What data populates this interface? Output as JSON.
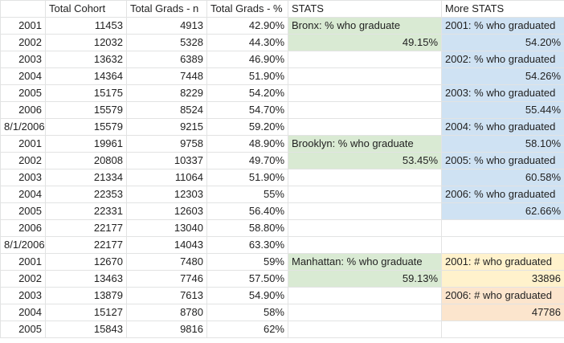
{
  "headers": [
    "",
    "Total Cohort",
    "Total Grads - n",
    "Total Grads - %",
    "STATS",
    "More STATS"
  ],
  "rows": [
    [
      "2001",
      "11453",
      "4913",
      "42.90%",
      "Bronx: % who graduate",
      "2001: % who graduated"
    ],
    [
      "2002",
      "12032",
      "5328",
      "44.30%",
      "49.15%",
      "54.20%"
    ],
    [
      "2003",
      "13632",
      "6389",
      "46.90%",
      "",
      "2002: % who graduated"
    ],
    [
      "2004",
      "14364",
      "7448",
      "51.90%",
      "",
      "54.26%"
    ],
    [
      "2005",
      "15175",
      "8229",
      "54.20%",
      "",
      "2003: % who graduated"
    ],
    [
      "2006",
      "15579",
      "8524",
      "54.70%",
      "",
      "55.44%"
    ],
    [
      "8/1/2006",
      "15579",
      "9215",
      "59.20%",
      "",
      "2004: % who graduated"
    ],
    [
      "2001",
      "19961",
      "9758",
      "48.90%",
      "Brooklyn: % who graduate",
      "58.10%"
    ],
    [
      "2002",
      "20808",
      "10337",
      "49.70%",
      "53.45%",
      "2005: % who graduated"
    ],
    [
      "2003",
      "21334",
      "11064",
      "51.90%",
      "",
      "60.58%"
    ],
    [
      "2004",
      "22353",
      "12303",
      "55%",
      "",
      "2006: % who graduated"
    ],
    [
      "2005",
      "22331",
      "12603",
      "56.40%",
      "",
      "62.66%"
    ],
    [
      "2006",
      "22177",
      "13040",
      "58.80%",
      "",
      ""
    ],
    [
      "8/1/2006",
      "22177",
      "14043",
      "63.30%",
      "",
      ""
    ],
    [
      "2001",
      "12670",
      "7480",
      "59%",
      "Manhattan: % who graduate",
      "2001: # who graduated"
    ],
    [
      "2002",
      "13463",
      "7746",
      "57.50%",
      "59.13%",
      "33896"
    ],
    [
      "2003",
      "13879",
      "7613",
      "54.90%",
      "",
      "2006: # who graduated"
    ],
    [
      "2004",
      "15127",
      "8780",
      "58%",
      "",
      "47786"
    ],
    [
      "2005",
      "15843",
      "9816",
      "62%",
      "",
      ""
    ]
  ],
  "colors": {
    "green": "#d9ead3",
    "blue": "#cfe2f3",
    "yellow": "#fff2cc",
    "orange": "#fce5cd",
    "gridline": "#e2e3e3"
  }
}
